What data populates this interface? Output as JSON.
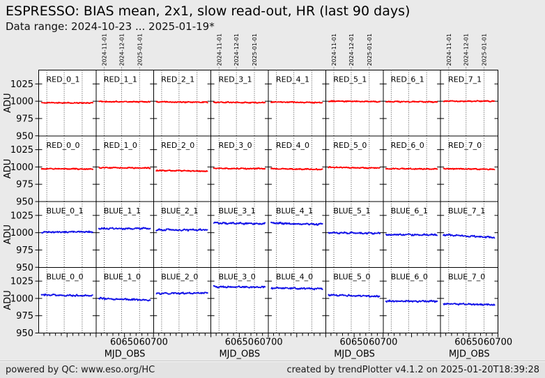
{
  "header": {
    "title": "ESPRESSO: BIAS mean, 2x1, slow read-out, HR (last 90 days)",
    "subtitle": "Data range: 2024-10-23 ... 2025-01-19*"
  },
  "footer": {
    "left": "powered by QC: www.eso.org/HC",
    "right": "created by trendPlotter v4.1.2 on 2025-01-20T18:39:28"
  },
  "chart_data": {
    "type": "line",
    "grid": {
      "rows": 4,
      "cols": 8
    },
    "x_axis": {
      "label": "MJD_OBS",
      "range": [
        60601,
        60700
      ],
      "major_ticks": [
        60650,
        60700
      ],
      "minor_tick_step": 10,
      "labeled_columns": [
        1,
        3,
        5,
        7
      ],
      "top_date_ticks": [
        {
          "label": "2024-11-01",
          "mjd": 60615
        },
        {
          "label": "2024-12-01",
          "mjd": 60645
        },
        {
          "label": "2025-01-01",
          "mjd": 60676
        }
      ]
    },
    "y_axis": {
      "label": "ADU",
      "range": [
        950,
        1045
      ],
      "ticks": [
        950,
        975,
        1000,
        1025
      ]
    },
    "data_x_span": [
      60606,
      60694
    ],
    "series_colors": {
      "RED": "#ff0000",
      "BLUE": "#1212e8"
    },
    "noise_amplitude": {
      "RED": 0.7,
      "BLUE": 1.2
    },
    "panels": [
      {
        "label": "RED_0_1",
        "series": "RED",
        "start": 998.0,
        "end": 997.5
      },
      {
        "label": "RED_1_1",
        "series": "RED",
        "start": 999.5,
        "end": 999.0
      },
      {
        "label": "RED_2_1",
        "series": "RED",
        "start": 999.0,
        "end": 998.5
      },
      {
        "label": "RED_3_1",
        "series": "RED",
        "start": 998.5,
        "end": 998.0
      },
      {
        "label": "RED_4_1",
        "series": "RED",
        "start": 999.0,
        "end": 998.0
      },
      {
        "label": "RED_5_1",
        "series": "RED",
        "start": 1000.0,
        "end": 999.5
      },
      {
        "label": "RED_6_1",
        "series": "RED",
        "start": 999.5,
        "end": 999.0
      },
      {
        "label": "RED_7_1",
        "series": "RED",
        "start": 1000.0,
        "end": 1000.0
      },
      {
        "label": "RED_0_0",
        "series": "RED",
        "start": 997.5,
        "end": 997.0
      },
      {
        "label": "RED_1_0",
        "series": "RED",
        "start": 999.0,
        "end": 998.5
      },
      {
        "label": "RED_2_0",
        "series": "RED",
        "start": 995.0,
        "end": 994.0
      },
      {
        "label": "RED_3_0",
        "series": "RED",
        "start": 998.0,
        "end": 997.5
      },
      {
        "label": "RED_4_0",
        "series": "RED",
        "start": 997.5,
        "end": 996.5
      },
      {
        "label": "RED_5_0",
        "series": "RED",
        "start": 999.5,
        "end": 998.5
      },
      {
        "label": "RED_6_0",
        "series": "RED",
        "start": 997.5,
        "end": 997.0
      },
      {
        "label": "RED_7_0",
        "series": "RED",
        "start": 997.5,
        "end": 996.5
      },
      {
        "label": "BLUE_0_1",
        "series": "BLUE",
        "start": 1001.0,
        "end": 1001.0
      },
      {
        "label": "BLUE_1_1",
        "series": "BLUE",
        "start": 1006.0,
        "end": 1006.0
      },
      {
        "label": "BLUE_2_1",
        "series": "BLUE",
        "start": 1004.0,
        "end": 1004.0
      },
      {
        "label": "BLUE_3_1",
        "series": "BLUE",
        "start": 1014.0,
        "end": 1013.0
      },
      {
        "label": "BLUE_4_1",
        "series": "BLUE",
        "start": 1014.0,
        "end": 1012.0
      },
      {
        "label": "BLUE_5_1",
        "series": "BLUE",
        "start": 1000.0,
        "end": 999.0
      },
      {
        "label": "BLUE_6_1",
        "series": "BLUE",
        "start": 997.0,
        "end": 997.0
      },
      {
        "label": "BLUE_7_1",
        "series": "BLUE",
        "start": 997.0,
        "end": 993.0
      },
      {
        "label": "BLUE_0_0",
        "series": "BLUE",
        "start": 1005.0,
        "end": 1004.0
      },
      {
        "label": "BLUE_1_0",
        "series": "BLUE",
        "start": 1000.0,
        "end": 997.5
      },
      {
        "label": "BLUE_2_0",
        "series": "BLUE",
        "start": 1007.0,
        "end": 1008.0
      },
      {
        "label": "BLUE_3_0",
        "series": "BLUE",
        "start": 1017.0,
        "end": 1016.0
      },
      {
        "label": "BLUE_4_0",
        "series": "BLUE",
        "start": 1015.0,
        "end": 1014.0
      },
      {
        "label": "BLUE_5_0",
        "series": "BLUE",
        "start": 1005.0,
        "end": 1003.0
      },
      {
        "label": "BLUE_6_0",
        "series": "BLUE",
        "start": 996.0,
        "end": 996.0
      },
      {
        "label": "BLUE_7_0",
        "series": "BLUE",
        "start": 992.0,
        "end": 991.0
      }
    ]
  }
}
